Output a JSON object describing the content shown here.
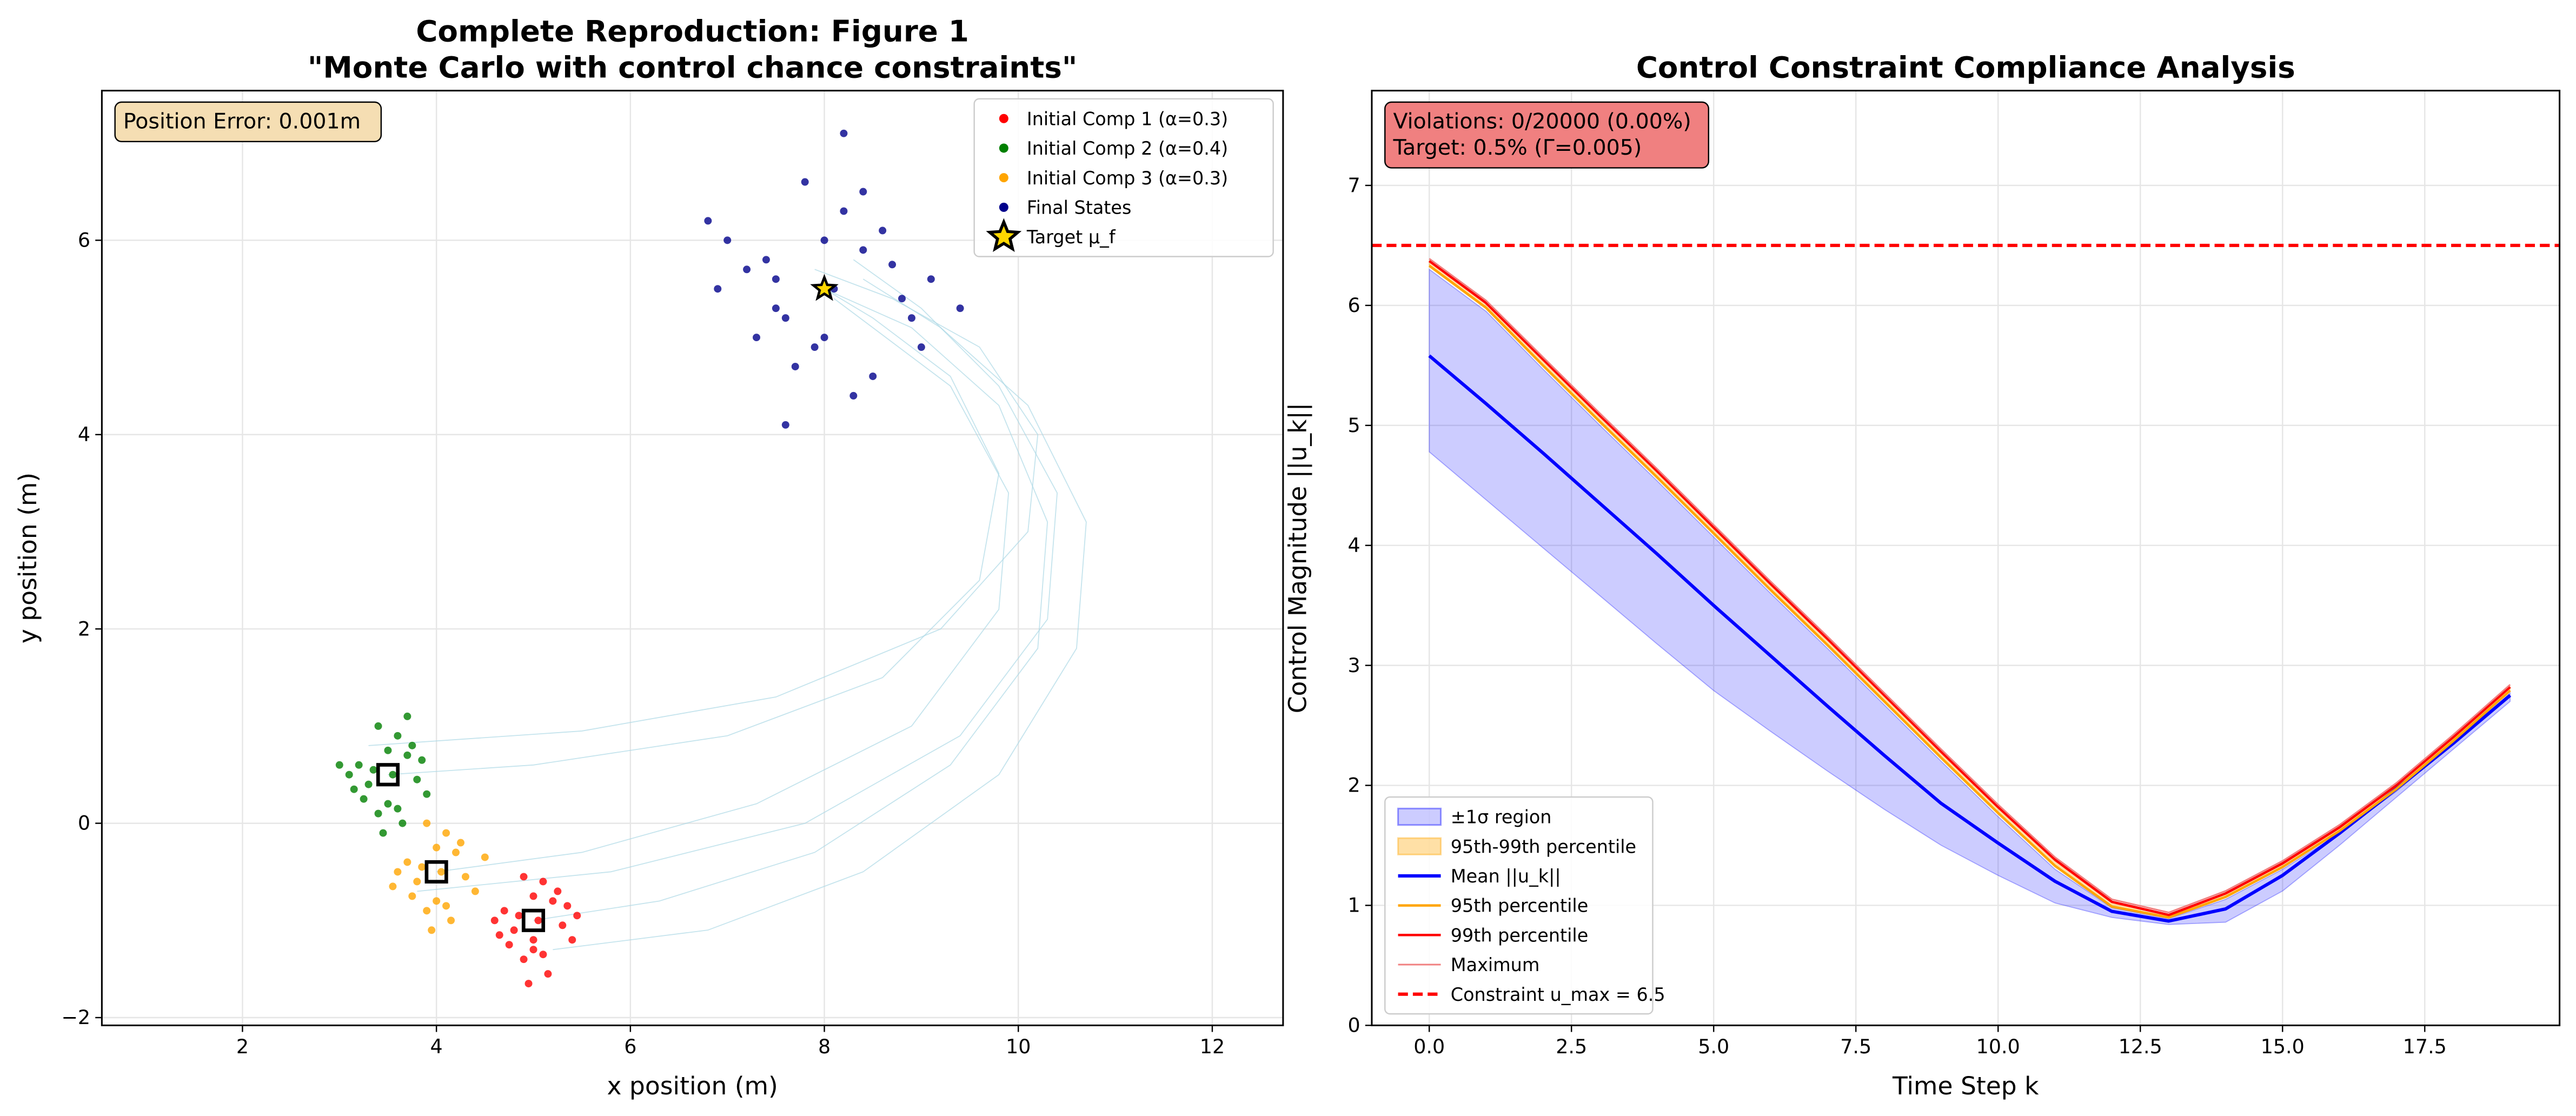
{
  "chart_data": [
    {
      "type": "scatter",
      "title": [
        "Complete Reproduction: Figure 1",
        "\"Monte Carlo with control chance constraints\""
      ],
      "xlabel": "x position (m)",
      "ylabel": "y position (m)",
      "xlim": [
        0.55,
        12.73
      ],
      "ylim": [
        -2.08,
        7.54
      ],
      "xticks": [
        2,
        4,
        6,
        8,
        10,
        12
      ],
      "yticks": [
        {
          "value": -2,
          "label": "−2"
        },
        0,
        2,
        4,
        6
      ],
      "grid": true,
      "legend": "upper right",
      "annotation": [
        "Position Error: 0.001m"
      ],
      "annotation_color": "#f5deb3",
      "trajectories": {
        "color": "#add8e6",
        "lines": [
          {
            "x": [
              3.5,
              5,
              7,
              8.6,
              9.6,
              9.8,
              9.3,
              8.5,
              8.0
            ],
            "y": [
              0.5,
              0.6,
              0.9,
              1.5,
              2.5,
              3.6,
              4.6,
              5.2,
              5.5
            ]
          },
          {
            "x": [
              3.3,
              5.5,
              7.5,
              9.2,
              10.1,
              10.2,
              9.6,
              8.7,
              7.9
            ],
            "y": [
              0.8,
              0.95,
              1.3,
              2.0,
              3.0,
              4.0,
              4.9,
              5.4,
              5.7
            ]
          },
          {
            "x": [
              4,
              5.5,
              7.3,
              8.9,
              9.8,
              9.9,
              9.3,
              8.5,
              8.1
            ],
            "y": [
              -0.5,
              -0.3,
              0.2,
              1.0,
              2.2,
              3.4,
              4.5,
              5.1,
              5.4
            ]
          },
          {
            "x": [
              3.8,
              5.8,
              7.8,
              9.4,
              10.3,
              10.4,
              9.8,
              9.0,
              8.3
            ],
            "y": [
              -0.7,
              -0.5,
              0.0,
              0.9,
              2.1,
              3.4,
              4.5,
              5.3,
              5.8
            ]
          },
          {
            "x": [
              5,
              6.3,
              7.9,
              9.3,
              10.2,
              10.3,
              9.8,
              8.9,
              8.0
            ],
            "y": [
              -1.0,
              -0.8,
              -0.3,
              0.6,
              1.8,
              3.1,
              4.3,
              5.1,
              5.5
            ]
          },
          {
            "x": [
              5.2,
              6.8,
              8.4,
              9.8,
              10.6,
              10.7,
              10.1,
              9.2,
              8.4
            ],
            "y": [
              -1.3,
              -1.1,
              -0.5,
              0.5,
              1.8,
              3.1,
              4.3,
              5.1,
              5.6
            ]
          }
        ]
      },
      "series": [
        {
          "name": "Initial Comp 1 (α=0.3)",
          "color": "#ff0000",
          "x": [
            4.8,
            5.2,
            5.0,
            4.7,
            5.3,
            5.1,
            4.9,
            5.4,
            4.6,
            5.0,
            5.15,
            4.85,
            5.25,
            4.75,
            5.05,
            4.95,
            5.35,
            4.65,
            5.1,
            4.9,
            5.0,
            5.45
          ],
          "y": [
            -1.1,
            -0.8,
            -1.3,
            -0.9,
            -1.05,
            -0.6,
            -1.4,
            -1.2,
            -1.0,
            -0.75,
            -1.55,
            -0.95,
            -0.7,
            -1.25,
            -1.0,
            -1.65,
            -0.85,
            -1.15,
            -1.35,
            -0.55,
            -1.2,
            -0.95
          ]
        },
        {
          "name": "Initial Comp 2 (α=0.4)",
          "color": "#008000",
          "x": [
            3.3,
            3.7,
            3.5,
            3.2,
            3.8,
            3.6,
            3.4,
            3.9,
            3.1,
            3.5,
            3.65,
            3.35,
            3.75,
            3.25,
            3.55,
            3.45,
            3.85,
            3.15,
            3.6,
            3.4,
            3.0,
            3.7
          ],
          "y": [
            0.4,
            0.7,
            0.2,
            0.6,
            0.45,
            0.9,
            0.1,
            0.3,
            0.5,
            0.75,
            0.0,
            0.55,
            0.8,
            0.25,
            0.5,
            -0.1,
            0.65,
            0.35,
            0.15,
            1.0,
            0.6,
            1.1
          ]
        },
        {
          "name": "Initial Comp 3 (α=0.3)",
          "color": "#ffa500",
          "x": [
            3.8,
            4.2,
            4.0,
            3.7,
            4.3,
            4.1,
            3.9,
            4.4,
            3.6,
            4.0,
            4.15,
            3.85,
            4.25,
            3.75,
            4.05,
            3.95,
            4.5,
            3.55,
            4.1,
            3.9
          ],
          "y": [
            -0.6,
            -0.3,
            -0.8,
            -0.4,
            -0.55,
            -0.1,
            -0.9,
            -0.7,
            -0.5,
            -0.25,
            -1.0,
            -0.45,
            -0.2,
            -0.75,
            -0.5,
            -1.1,
            -0.35,
            -0.65,
            -0.85,
            0.0
          ]
        },
        {
          "name": "Final States",
          "color": "#00008b",
          "x": [
            7.5,
            8.4,
            8.0,
            7.2,
            8.8,
            8.2,
            7.7,
            9.1,
            6.9,
            8.0,
            8.3,
            7.6,
            8.6,
            7.4,
            8.1,
            7.9,
            9.4,
            6.8,
            8.5,
            7.8,
            8.0,
            7.3,
            8.7,
            8.2,
            7.0,
            9.0,
            7.6,
            8.4,
            8.9,
            7.5
          ],
          "y": [
            5.3,
            5.9,
            5.0,
            5.7,
            5.4,
            6.3,
            4.7,
            5.6,
            5.5,
            6.0,
            4.4,
            5.2,
            6.1,
            5.8,
            5.5,
            4.9,
            5.3,
            6.2,
            4.6,
            6.6,
            5.5,
            5.0,
            5.75,
            7.1,
            6.0,
            4.9,
            4.1,
            6.5,
            5.2,
            5.6
          ]
        }
      ],
      "component_means": {
        "x": [
          3.5,
          4,
          5
        ],
        "y": [
          0.5,
          -0.5,
          -1
        ]
      },
      "target": {
        "name": "Target μ_f",
        "x": 8,
        "y": 5.5,
        "color": "#ffd700"
      }
    },
    {
      "type": "line",
      "title": [
        "Control Constraint Compliance Analysis"
      ],
      "xlabel": "Time Step k",
      "ylabel": "Control Magnitude ||u_k||",
      "xlim": [
        -1.01,
        19.87
      ],
      "ylim": [
        0,
        7.79
      ],
      "xticks": [
        {
          "value": 0,
          "label": "0.0"
        },
        {
          "value": 2.5,
          "label": "2.5"
        },
        {
          "value": 5,
          "label": "5.0"
        },
        {
          "value": 7.5,
          "label": "7.5"
        },
        {
          "value": 10,
          "label": "10.0"
        },
        {
          "value": 12.5,
          "label": "12.5"
        },
        {
          "value": 15,
          "label": "15.0"
        },
        {
          "value": 17.5,
          "label": "17.5"
        }
      ],
      "yticks": [
        0,
        1,
        2,
        3,
        4,
        5,
        6,
        7
      ],
      "grid": true,
      "legend": "lower left",
      "annotation": [
        "Violations: 0/20000 (0.00%)",
        "Target: 0.5% (Γ=0.005)"
      ],
      "annotation_color": "#f08080",
      "x": [
        0,
        1,
        2,
        3,
        4,
        5,
        6,
        7,
        8,
        9,
        10,
        11,
        12,
        13,
        14,
        15,
        16,
        17,
        18,
        19
      ],
      "bands": [
        {
          "name": "±1σ region",
          "color": "#0000ff",
          "lower": [
            4.78,
            4.38,
            3.98,
            3.58,
            3.18,
            2.79,
            2.45,
            2.12,
            1.8,
            1.5,
            1.25,
            1.02,
            0.9,
            0.84,
            0.86,
            1.12,
            1.5,
            1.9,
            2.3,
            2.7
          ],
          "upper": [
            6.3,
            5.95,
            5.47,
            5.0,
            4.54,
            4.07,
            3.6,
            3.14,
            2.67,
            2.2,
            1.74,
            1.3,
            0.98,
            0.89,
            1.05,
            1.3,
            1.6,
            1.95,
            2.35,
            2.77
          ]
        },
        {
          "name": "95th-99th percentile",
          "color": "#ffa500",
          "lower": [
            6.33,
            5.98,
            5.5,
            5.03,
            4.57,
            4.1,
            3.63,
            3.17,
            2.7,
            2.23,
            1.77,
            1.33,
            0.99,
            0.9,
            1.07,
            1.32,
            1.62,
            1.97,
            2.37,
            2.79
          ],
          "upper": [
            6.37,
            6.02,
            5.55,
            5.08,
            4.62,
            4.15,
            3.68,
            3.22,
            2.75,
            2.28,
            1.82,
            1.38,
            1.03,
            0.92,
            1.1,
            1.35,
            1.65,
            2.0,
            2.4,
            2.82
          ]
        }
      ],
      "series": [
        {
          "name": "Mean ||u_k||",
          "color": "#0000ff",
          "values": [
            5.58,
            5.18,
            4.77,
            4.35,
            3.93,
            3.5,
            3.08,
            2.66,
            2.25,
            1.85,
            1.52,
            1.2,
            0.95,
            0.87,
            0.97,
            1.25,
            1.6,
            1.97,
            2.35,
            2.75
          ]
        },
        {
          "name": "95th percentile",
          "color": "#ffa500",
          "values": [
            6.33,
            5.98,
            5.5,
            5.03,
            4.57,
            4.1,
            3.63,
            3.17,
            2.7,
            2.23,
            1.77,
            1.33,
            0.99,
            0.9,
            1.07,
            1.32,
            1.62,
            1.97,
            2.37,
            2.79
          ]
        },
        {
          "name": "99th percentile",
          "color": "#ff0000",
          "values": [
            6.37,
            6.02,
            5.55,
            5.08,
            4.62,
            4.15,
            3.68,
            3.22,
            2.75,
            2.28,
            1.82,
            1.38,
            1.03,
            0.92,
            1.1,
            1.35,
            1.65,
            2.0,
            2.4,
            2.82
          ]
        },
        {
          "name": "Maximum",
          "color": "#f08080",
          "values": [
            6.39,
            6.04,
            5.57,
            5.1,
            4.64,
            4.17,
            3.7,
            3.24,
            2.77,
            2.3,
            1.84,
            1.4,
            1.05,
            0.94,
            1.12,
            1.37,
            1.67,
            2.02,
            2.42,
            2.84
          ]
        }
      ],
      "hline": {
        "name": "Constraint u_max = 6.5",
        "value": 6.5,
        "color": "#ff0000"
      }
    }
  ]
}
